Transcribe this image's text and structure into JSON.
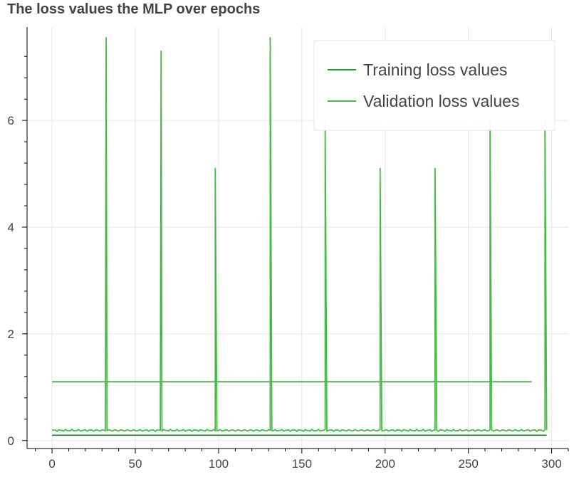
{
  "chart_data": {
    "type": "line",
    "title": "The loss values the MLP over epochs",
    "xlabel": "",
    "ylabel": "",
    "xlim": [
      -15,
      310
    ],
    "ylim": [
      -0.15,
      7.75
    ],
    "x_ticks": [
      0,
      50,
      100,
      150,
      200,
      250,
      300
    ],
    "y_ticks": [
      0,
      2,
      4,
      6
    ],
    "grid": true,
    "legend_position": "top-right",
    "colors": {
      "training": "#2ca02c",
      "validation": "#44bb44",
      "training_constant": "#2e9a2e",
      "baseline": "#1f7a1f"
    },
    "series": [
      {
        "name": "Training loss values",
        "x": [
          0,
          288
        ],
        "y": [
          1.1,
          1.1
        ]
      },
      {
        "name": "Validation loss values",
        "baseline": 0.19,
        "epochs": 297,
        "spikes": [
          {
            "x": 32.5,
            "y": 7.55
          },
          {
            "x": 65.5,
            "y": 7.3
          },
          {
            "x": 98,
            "y": 5.1
          },
          {
            "x": 131,
            "y": 7.55
          },
          {
            "x": 164,
            "y": 6.0
          },
          {
            "x": 197,
            "y": 5.1
          },
          {
            "x": 230,
            "y": 5.1
          },
          {
            "x": 263,
            "y": 6.0
          },
          {
            "x": 296,
            "y": 6.0
          }
        ]
      },
      {
        "x": [
          0,
          297
        ],
        "y": [
          0.1,
          0.1
        ]
      }
    ]
  }
}
